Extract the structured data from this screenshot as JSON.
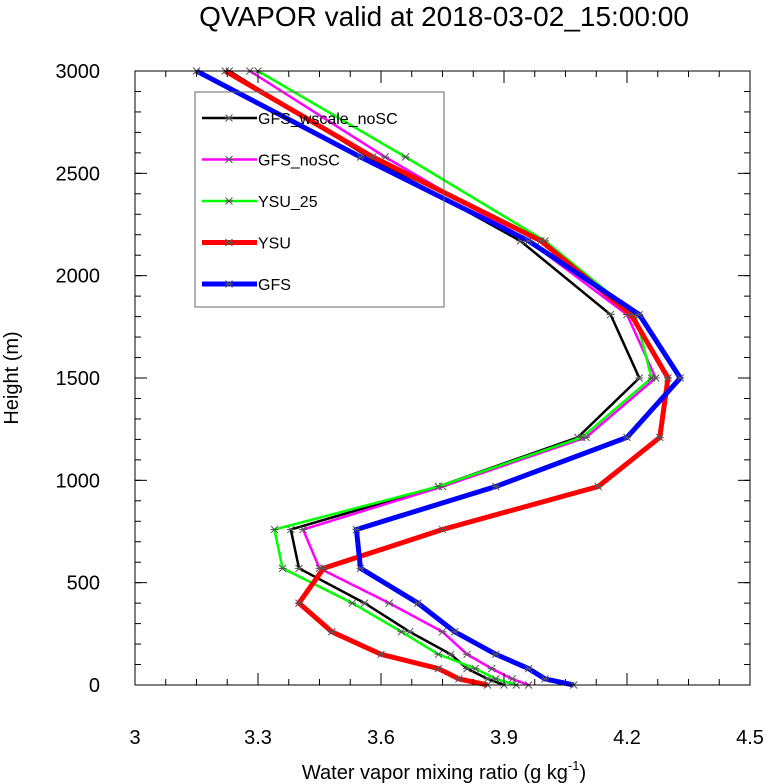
{
  "chart_data": {
    "type": "line",
    "title": "QVAPOR valid at 2018-03-02_15:00:00",
    "xlabel": "Water vapor mixing ratio (g kg",
    "xlabel_exp": "-1",
    "xlabel_close": ")",
    "ylabel": "Height (m)",
    "xlim": [
      3.0,
      4.5
    ],
    "ylim": [
      0,
      3000
    ],
    "xticks": [
      3.0,
      3.3,
      3.6,
      3.9,
      4.2,
      4.5
    ],
    "xtick_labels": [
      "3",
      "3.3",
      "3.6",
      "3.9",
      "4.2",
      "4.5"
    ],
    "yticks": [
      0,
      500,
      1000,
      1500,
      2000,
      2500,
      3000
    ],
    "ytick_labels": [
      "0",
      "500",
      "1000",
      "1500",
      "2000",
      "2500",
      "3000"
    ],
    "legend_position": "top-left",
    "series": [
      {
        "name": "GFS_wscale_noSC",
        "color": "#000000",
        "width": 2.5,
        "points": [
          [
            3.9,
            0
          ],
          [
            3.86,
            30
          ],
          [
            3.81,
            80
          ],
          [
            3.77,
            150
          ],
          [
            3.67,
            260
          ],
          [
            3.56,
            400
          ],
          [
            3.4,
            570
          ],
          [
            3.38,
            760
          ],
          [
            3.74,
            970
          ],
          [
            4.08,
            1210
          ],
          [
            4.23,
            1500
          ],
          [
            4.16,
            1810
          ],
          [
            3.94,
            2170
          ],
          [
            3.57,
            2580
          ],
          [
            3.23,
            3000
          ]
        ]
      },
      {
        "name": "GFS_noSC",
        "color": "#ff00ff",
        "width": 2.5,
        "points": [
          [
            3.96,
            0
          ],
          [
            3.92,
            30
          ],
          [
            3.87,
            80
          ],
          [
            3.81,
            150
          ],
          [
            3.75,
            260
          ],
          [
            3.62,
            400
          ],
          [
            3.45,
            570
          ],
          [
            3.41,
            760
          ],
          [
            3.75,
            970
          ],
          [
            4.1,
            1210
          ],
          [
            4.27,
            1500
          ],
          [
            4.2,
            1810
          ],
          [
            3.96,
            2170
          ],
          [
            3.61,
            2580
          ],
          [
            3.28,
            3000
          ]
        ]
      },
      {
        "name": "YSU_25",
        "color": "#00ff00",
        "width": 2.5,
        "points": [
          [
            3.93,
            0
          ],
          [
            3.88,
            30
          ],
          [
            3.83,
            80
          ],
          [
            3.74,
            150
          ],
          [
            3.65,
            260
          ],
          [
            3.53,
            400
          ],
          [
            3.36,
            570
          ],
          [
            3.34,
            760
          ],
          [
            3.74,
            970
          ],
          [
            4.09,
            1210
          ],
          [
            4.26,
            1500
          ],
          [
            4.22,
            1810
          ],
          [
            4.0,
            2170
          ],
          [
            3.66,
            2580
          ],
          [
            3.3,
            3000
          ]
        ]
      },
      {
        "name": "YSU",
        "color": "#ff0000",
        "width": 5,
        "points": [
          [
            3.86,
            0
          ],
          [
            3.79,
            30
          ],
          [
            3.74,
            80
          ],
          [
            3.6,
            150
          ],
          [
            3.48,
            260
          ],
          [
            3.4,
            400
          ],
          [
            3.46,
            570
          ],
          [
            3.75,
            760
          ],
          [
            4.13,
            970
          ],
          [
            4.28,
            1210
          ],
          [
            4.3,
            1500
          ],
          [
            4.21,
            1810
          ],
          [
            3.99,
            2170
          ],
          [
            3.58,
            2580
          ],
          [
            3.22,
            3000
          ]
        ]
      },
      {
        "name": "GFS",
        "color": "#0000ff",
        "width": 5,
        "points": [
          [
            4.07,
            0
          ],
          [
            4.0,
            30
          ],
          [
            3.96,
            80
          ],
          [
            3.88,
            150
          ],
          [
            3.78,
            260
          ],
          [
            3.69,
            400
          ],
          [
            3.55,
            570
          ],
          [
            3.54,
            760
          ],
          [
            3.88,
            970
          ],
          [
            4.2,
            1210
          ],
          [
            4.33,
            1500
          ],
          [
            4.23,
            1810
          ],
          [
            3.96,
            2170
          ],
          [
            3.55,
            2580
          ],
          [
            3.15,
            3000
          ]
        ]
      }
    ]
  }
}
